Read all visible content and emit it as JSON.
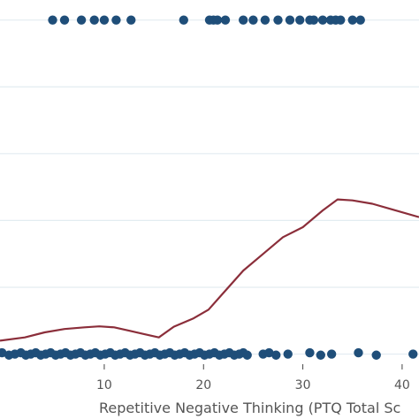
{
  "chart_data": {
    "type": "scatter",
    "title": "",
    "xlabel": "Repetitive Negative Thinking (PTQ Total Sc",
    "ylabel": "",
    "xlim": [
      -0.5,
      41.7
    ],
    "ylim": [
      -0.025,
      1.06
    ],
    "x_ticks": [
      10,
      20,
      30,
      40
    ],
    "x_tick_labels": [
      "10",
      "20",
      "30",
      "40"
    ],
    "y_gridlines": [
      0,
      0.2,
      0.4,
      0.6,
      0.8,
      1.0
    ],
    "grid": true,
    "series": [
      {
        "kind": "points",
        "color": "#1f4e79",
        "y1_x": [
          4.8,
          6.0,
          7.7,
          9.0,
          10.0,
          11.2,
          12.7,
          18.0,
          20.6,
          21.0,
          21.4,
          22.2,
          24.0,
          25.0,
          26.2,
          27.5,
          28.7,
          29.7,
          30.7,
          31.1,
          32.0,
          32.8,
          33.3,
          33.8,
          35.0,
          35.8
        ],
        "y0_x": [
          -0.3,
          0.4,
          1.0,
          1.6,
          2.1,
          2.6,
          3.1,
          3.6,
          4.1,
          4.6,
          5.1,
          5.6,
          6.1,
          6.6,
          7.1,
          7.6,
          8.1,
          8.6,
          9.1,
          9.6,
          10.1,
          10.6,
          11.1,
          11.6,
          12.1,
          12.6,
          13.1,
          13.6,
          14.1,
          14.6,
          15.1,
          15.6,
          16.1,
          16.6,
          17.1,
          17.6,
          18.1,
          18.6,
          19.1,
          19.6,
          20.1,
          20.6,
          21.1,
          21.6,
          22.1,
          22.6,
          23.1,
          23.6,
          24.0,
          24.4,
          26.0,
          26.6,
          27.3,
          28.5,
          30.7,
          31.8,
          32.9,
          35.6,
          37.4,
          41.1
        ]
      },
      {
        "kind": "line",
        "color": "#8b2e3a",
        "x": [
          -0.5,
          2.0,
          4.0,
          6.0,
          8.0,
          9.5,
          11.0,
          12.5,
          14.0,
          15.5,
          17.0,
          19.0,
          20.5,
          22.0,
          24.0,
          26.0,
          28.0,
          30.0,
          32.0,
          33.5,
          35.0,
          37.0,
          39.0,
          41.7
        ],
        "y": [
          0.04,
          0.05,
          0.065,
          0.075,
          0.08,
          0.083,
          0.08,
          0.07,
          0.06,
          0.05,
          0.082,
          0.107,
          0.133,
          0.183,
          0.25,
          0.3,
          0.35,
          0.38,
          0.43,
          0.463,
          0.46,
          0.45,
          0.433,
          0.41
        ]
      }
    ]
  }
}
